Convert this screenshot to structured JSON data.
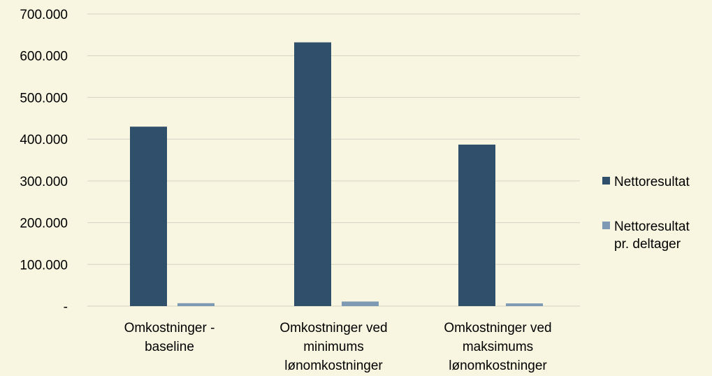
{
  "chart_data": {
    "type": "bar",
    "categories": [
      [
        "Omkostninger -",
        "baseline"
      ],
      [
        "Omkostninger ved",
        "minimums",
        "lønomkostninger"
      ],
      [
        "Omkostninger ved",
        "maksimums",
        "lønomkostninger"
      ]
    ],
    "series": [
      {
        "name": [
          "Nettoresultat"
        ],
        "color": "#2f4f6b",
        "values": [
          430000,
          632000,
          387000
        ]
      },
      {
        "name": [
          "Nettoresultat",
          "pr. deltager"
        ],
        "color": "#7d99b3",
        "values": [
          7000,
          11000,
          6500
        ]
      }
    ],
    "y_ticks": [
      {
        "value": 0,
        "label": "-"
      },
      {
        "value": 100000,
        "label": "100.000"
      },
      {
        "value": 200000,
        "label": "200.000"
      },
      {
        "value": 300000,
        "label": "300.000"
      },
      {
        "value": 400000,
        "label": "400.000"
      },
      {
        "value": 500000,
        "label": "500.000"
      },
      {
        "value": 600000,
        "label": "600.000"
      },
      {
        "value": 700000,
        "label": "700.000"
      }
    ],
    "ylim": [
      0,
      700000
    ],
    "grid": true,
    "legend_position": "right",
    "title": "",
    "xlabel": "",
    "ylabel": ""
  }
}
